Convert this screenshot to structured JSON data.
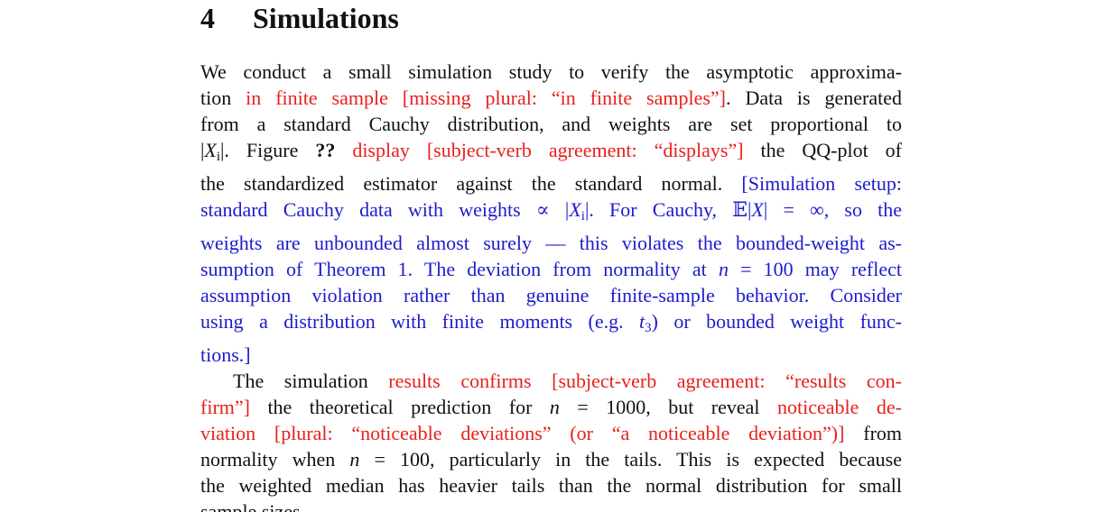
{
  "section": {
    "number": "4",
    "title": "Simulations"
  },
  "body": {
    "paragraphs": [
      {
        "indent": false,
        "lines": [
          [
            {
              "text": "We conduct a small simulation study to verify the asymptotic approxima-"
            }
          ],
          [
            {
              "text": "tion "
            },
            {
              "text": "in finite sample [missing plural: “in finite samples”]",
              "color": "#e8201c"
            },
            {
              "text": ". Data is generated"
            }
          ],
          [
            {
              "text": "from a standard Cauchy distribution, and weights are set proportional to"
            }
          ],
          [
            {
              "text": "|"
            },
            {
              "text": "X",
              "form": "math"
            },
            {
              "text": "i",
              "form": "sub"
            },
            {
              "text": "|. Figure "
            },
            {
              "text": "??",
              "form": "bold"
            },
            {
              "text": " "
            },
            {
              "text": "display [subject-verb agreement: “displays”]",
              "color": "#e8201c"
            },
            {
              "text": " the QQ-plot of"
            }
          ],
          [
            {
              "text": "the standardized estimator against the standard normal. "
            },
            {
              "text": "[Simulation setup:",
              "color": "#1c1ccc"
            }
          ],
          [
            {
              "text": "standard Cauchy data with weights ∝ |",
              "color": "#1c1ccc"
            },
            {
              "text": "X",
              "color": "#1c1ccc",
              "form": "math"
            },
            {
              "text": "i",
              "color": "#1c1ccc",
              "form": "sub"
            },
            {
              "text": "|. For Cauchy, 𝔼|",
              "color": "#1c1ccc"
            },
            {
              "text": "X",
              "color": "#1c1ccc",
              "form": "math"
            },
            {
              "text": "| = ∞, so the",
              "color": "#1c1ccc"
            }
          ],
          [
            {
              "text": "weights are unbounded almost surely — this violates the bounded-weight as-",
              "color": "#1c1ccc"
            }
          ],
          [
            {
              "text": "sumption of Theorem 1. The deviation from normality at ",
              "color": "#1c1ccc"
            },
            {
              "text": "n",
              "color": "#1c1ccc",
              "form": "math"
            },
            {
              "text": " = 100 may reflect",
              "color": "#1c1ccc"
            }
          ],
          [
            {
              "text": "assumption violation rather than genuine finite-sample behavior. Consider",
              "color": "#1c1ccc"
            }
          ],
          [
            {
              "text": "using a distribution with finite moments (e.g. ",
              "color": "#1c1ccc"
            },
            {
              "text": "t",
              "color": "#1c1ccc",
              "form": "math"
            },
            {
              "text": "3",
              "color": "#1c1ccc",
              "form": "sub"
            },
            {
              "text": ") or bounded weight func-",
              "color": "#1c1ccc"
            }
          ],
          [
            {
              "text": "tions.]",
              "color": "#1c1ccc"
            }
          ]
        ]
      },
      {
        "indent": true,
        "lines": [
          [
            {
              "text": "The simulation "
            },
            {
              "text": "results confirms [subject-verb agreement: “results con-",
              "color": "#e8201c"
            }
          ],
          [
            {
              "text": "firm”]",
              "color": "#e8201c"
            },
            {
              "text": " the theoretical prediction for "
            },
            {
              "text": "n",
              "form": "math"
            },
            {
              "text": " = 1000, but reveal "
            },
            {
              "text": "noticeable de-",
              "color": "#e8201c"
            }
          ],
          [
            {
              "text": "viation [plural: “noticeable deviations” (or “a noticeable deviation”)]",
              "color": "#e8201c"
            },
            {
              "text": " from"
            }
          ],
          [
            {
              "text": "normality when "
            },
            {
              "text": "n",
              "form": "math"
            },
            {
              "text": " = 100, particularly in the tails. This is expected because"
            }
          ],
          [
            {
              "text": "the weighted median has heavier tails than the normal distribution for small"
            }
          ],
          [
            {
              "text": "sample sizes."
            }
          ]
        ]
      }
    ]
  }
}
